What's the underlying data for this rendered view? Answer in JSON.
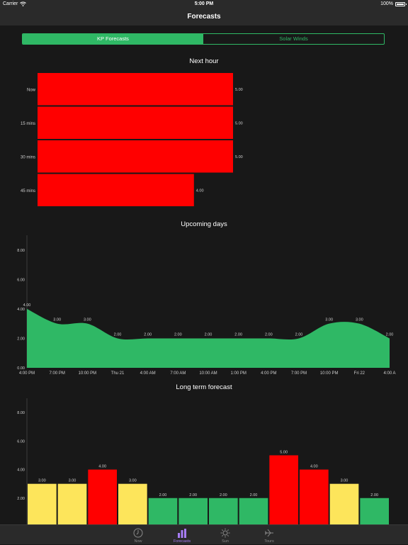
{
  "status_bar": {
    "carrier": "Carrier",
    "time": "5:00 PM",
    "battery": "100%"
  },
  "nav": {
    "title": "Forecasts"
  },
  "segments": [
    {
      "label": "KP Forecasts",
      "active": true
    },
    {
      "label": "Solar Winds",
      "active": false
    }
  ],
  "colors": {
    "accent": "#2fb865",
    "red": "#ff0000",
    "yellow": "#fde55b",
    "green": "#2fb865",
    "tab_active": "#a77df5"
  },
  "sections": {
    "next_hour": "Next hour",
    "upcoming_days": "Upcoming days",
    "long_term": "Long term forecast"
  },
  "chart_data": [
    {
      "type": "bar",
      "orientation": "horizontal",
      "title": "Next hour",
      "categories": [
        "Now",
        "15 mins",
        "30 mins",
        "45 mins"
      ],
      "values": [
        5.0,
        5.0,
        5.0,
        4.0
      ],
      "value_labels": [
        "5.00",
        "5.00",
        "5.00",
        "4.00"
      ],
      "colors": [
        "#ff0000",
        "#ff0000",
        "#ff0000",
        "#ff0000"
      ],
      "xlim": [
        0,
        9
      ]
    },
    {
      "type": "area",
      "title": "Upcoming days",
      "x_tick_labels": [
        "4:00 PM",
        "7:00 PM",
        "10:00 PM",
        "Thu 21",
        "4:00 AM",
        "7:00 AM",
        "10:00 AM",
        "1:00 PM",
        "4:00 PM",
        "7:00 PM",
        "10:00 PM",
        "Fri 22",
        "4:00 A"
      ],
      "values": [
        4.0,
        3.0,
        3.0,
        2.0,
        2.0,
        2.0,
        2.0,
        2.0,
        2.0,
        2.0,
        3.0,
        3.0,
        2.0
      ],
      "value_labels": [
        "4.00",
        "3.00",
        "3.00",
        "2.00",
        "2.00",
        "2.00",
        "2.00",
        "2.00",
        "2.00",
        "2.00",
        "3.00",
        "3.00",
        "2.00"
      ],
      "y_ticks": [
        "0.00",
        "2.00",
        "4.00",
        "6.00",
        "8.00"
      ],
      "ylim": [
        0,
        9
      ],
      "fill": "#2fb865"
    },
    {
      "type": "bar",
      "title": "Long term forecast",
      "values": [
        3,
        3,
        4,
        3,
        2,
        2,
        2,
        2,
        5,
        4,
        3,
        2
      ],
      "value_labels": [
        "3.00",
        "3.00",
        "4.00",
        "3.00",
        "2.00",
        "2.00",
        "2.00",
        "2.00",
        "5.00",
        "4.00",
        "3.00",
        "2.00"
      ],
      "colors": [
        "#fde55b",
        "#fde55b",
        "#ff0000",
        "#fde55b",
        "#2fb865",
        "#2fb865",
        "#2fb865",
        "#2fb865",
        "#ff0000",
        "#ff0000",
        "#fde55b",
        "#2fb865"
      ],
      "y_ticks": [
        "2.00",
        "4.00",
        "6.00",
        "8.00"
      ],
      "ylim": [
        0,
        9
      ]
    }
  ],
  "tabs": [
    {
      "label": "Now",
      "icon": "clock-icon",
      "active": false
    },
    {
      "label": "Forecasts",
      "icon": "bar-chart-icon",
      "active": true
    },
    {
      "label": "Sun",
      "icon": "sun-icon",
      "active": false
    },
    {
      "label": "Tours",
      "icon": "airplane-icon",
      "active": false
    }
  ]
}
